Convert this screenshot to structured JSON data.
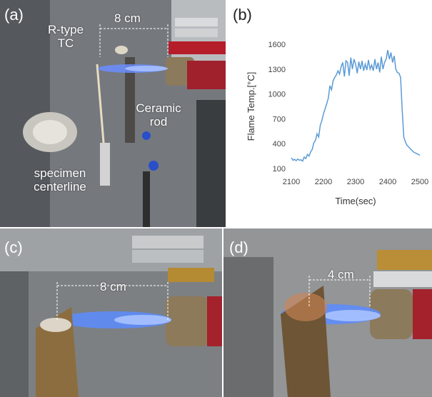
{
  "panels": {
    "a": {
      "label": "(a)",
      "distance": "8 cm",
      "thermocouple_label": [
        "R-type",
        "TC"
      ],
      "rod_label": [
        "Ceramic",
        "rod"
      ],
      "specimen_label": [
        "specimen",
        "centerline"
      ]
    },
    "b": {
      "label": "(b)"
    },
    "c": {
      "label": "(c)",
      "distance": "8 cm"
    },
    "d": {
      "label": "(d)",
      "distance": "4 cm"
    }
  },
  "colors": {
    "series_line": "#5b9bd5",
    "flame": "#5a8cff"
  },
  "chart_data": {
    "type": "line",
    "title": "",
    "xlabel": "Time(sec)",
    "ylabel": "Flame Temp.[°C]",
    "xlim": [
      2100,
      2500
    ],
    "ylim": [
      100,
      1600
    ],
    "xticks": [
      2100,
      2200,
      2300,
      2400,
      2500
    ],
    "yticks": [
      100,
      400,
      700,
      1000,
      1300,
      1600
    ],
    "grid": false,
    "x": [
      2100,
      2105,
      2110,
      2115,
      2120,
      2125,
      2130,
      2135,
      2140,
      2145,
      2150,
      2155,
      2160,
      2165,
      2170,
      2175,
      2180,
      2185,
      2190,
      2195,
      2200,
      2205,
      2210,
      2215,
      2220,
      2225,
      2230,
      2235,
      2240,
      2245,
      2250,
      2255,
      2260,
      2265,
      2270,
      2275,
      2280,
      2285,
      2290,
      2295,
      2300,
      2305,
      2310,
      2315,
      2320,
      2325,
      2330,
      2335,
      2340,
      2345,
      2350,
      2355,
      2360,
      2365,
      2370,
      2375,
      2380,
      2385,
      2390,
      2395,
      2400,
      2405,
      2410,
      2415,
      2420,
      2425,
      2430,
      2435,
      2440,
      2445,
      2450,
      2455,
      2460,
      2465,
      2470,
      2475,
      2480,
      2485,
      2490,
      2495,
      2500
    ],
    "y": [
      230,
      200,
      210,
      195,
      215,
      200,
      205,
      190,
      240,
      220,
      270,
      250,
      300,
      330,
      410,
      440,
      520,
      480,
      620,
      680,
      760,
      820,
      880,
      950,
      1100,
      1050,
      1160,
      1200,
      1230,
      1280,
      1240,
      1330,
      1380,
      1210,
      1400,
      1380,
      1220,
      1440,
      1300,
      1420,
      1360,
      1250,
      1390,
      1300,
      1400,
      1280,
      1360,
      1290,
      1410,
      1300,
      1350,
      1280,
      1420,
      1300,
      1380,
      1260,
      1450,
      1300,
      1380,
      1420,
      1530,
      1420,
      1500,
      1380,
      1460,
      1300,
      1260,
      1250,
      1200,
      800,
      480,
      420,
      380,
      360,
      340,
      320,
      300,
      290,
      280,
      270,
      260
    ]
  }
}
